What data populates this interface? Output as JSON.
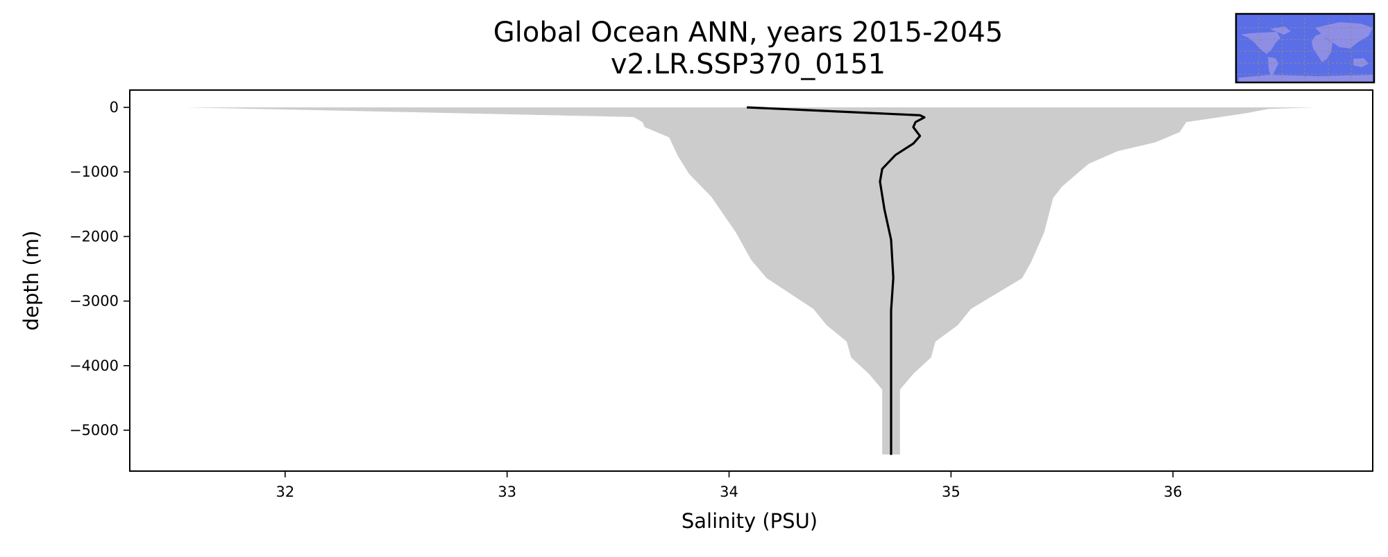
{
  "chart_data": {
    "type": "area",
    "title": "Global Ocean ANN, years 2015-2045",
    "subtitle": "v2.LR.SSP370_0151",
    "xlabel": "Salinity (PSU)",
    "ylabel": "depth (m)",
    "xlim": [
      31.3,
      36.9
    ],
    "ylim": [
      -5633,
      268
    ],
    "xticks": [
      32,
      33,
      34,
      35,
      36
    ],
    "xtick_labels": [
      "32",
      "33",
      "34",
      "35",
      "36"
    ],
    "yticks": [
      0,
      -1000,
      -2000,
      -3000,
      -4000,
      -5000
    ],
    "ytick_labels": [
      "0",
      "−1000",
      "−2000",
      "−3000",
      "−4000",
      "−5000"
    ],
    "grid": false,
    "colors": {
      "range_fill": "#cccccc",
      "mean_line": "#000000",
      "map_ocean": "#5a6ee8",
      "map_land": "#8e8ee6"
    },
    "range_band": {
      "min": [
        [
          31.55,
          0
        ],
        [
          33.57,
          -149
        ],
        [
          33.61,
          -228
        ],
        [
          33.62,
          -306
        ],
        [
          33.73,
          -464
        ],
        [
          33.77,
          -757
        ],
        [
          33.82,
          -1031
        ],
        [
          33.92,
          -1384
        ],
        [
          34.03,
          -1933
        ],
        [
          34.1,
          -2365
        ],
        [
          34.17,
          -2646
        ],
        [
          34.38,
          -3121
        ],
        [
          34.44,
          -3375
        ],
        [
          34.53,
          -3627
        ],
        [
          34.55,
          -3873
        ],
        [
          34.63,
          -4127
        ],
        [
          34.69,
          -4371
        ],
        [
          34.69,
          -5375
        ]
      ],
      "max": [
        [
          36.64,
          0
        ],
        [
          36.43,
          -24
        ],
        [
          36.33,
          -90
        ],
        [
          36.06,
          -228
        ],
        [
          36.03,
          -384
        ],
        [
          35.92,
          -542
        ],
        [
          35.75,
          -679
        ],
        [
          35.62,
          -874
        ],
        [
          35.5,
          -1227
        ],
        [
          35.46,
          -1403
        ],
        [
          35.42,
          -1933
        ],
        [
          35.36,
          -2403
        ],
        [
          35.32,
          -2646
        ],
        [
          35.09,
          -3121
        ],
        [
          35.03,
          -3375
        ],
        [
          34.93,
          -3627
        ],
        [
          34.91,
          -3873
        ],
        [
          34.83,
          -4127
        ],
        [
          34.77,
          -4371
        ],
        [
          34.77,
          -5375
        ]
      ]
    },
    "mean_profile": [
      [
        34.08,
        0
      ],
      [
        34.86,
        -122
      ],
      [
        34.88,
        -155
      ],
      [
        34.84,
        -228
      ],
      [
        34.83,
        -306
      ],
      [
        34.86,
        -443
      ],
      [
        34.83,
        -561
      ],
      [
        34.75,
        -737
      ],
      [
        34.69,
        -953
      ],
      [
        34.68,
        -1149
      ],
      [
        34.7,
        -1580
      ],
      [
        34.73,
        -2050
      ],
      [
        34.74,
        -2638
      ],
      [
        34.73,
        -3148
      ],
      [
        34.73,
        -4324
      ],
      [
        34.73,
        -5382
      ]
    ],
    "inset": "world-map-global-region"
  }
}
